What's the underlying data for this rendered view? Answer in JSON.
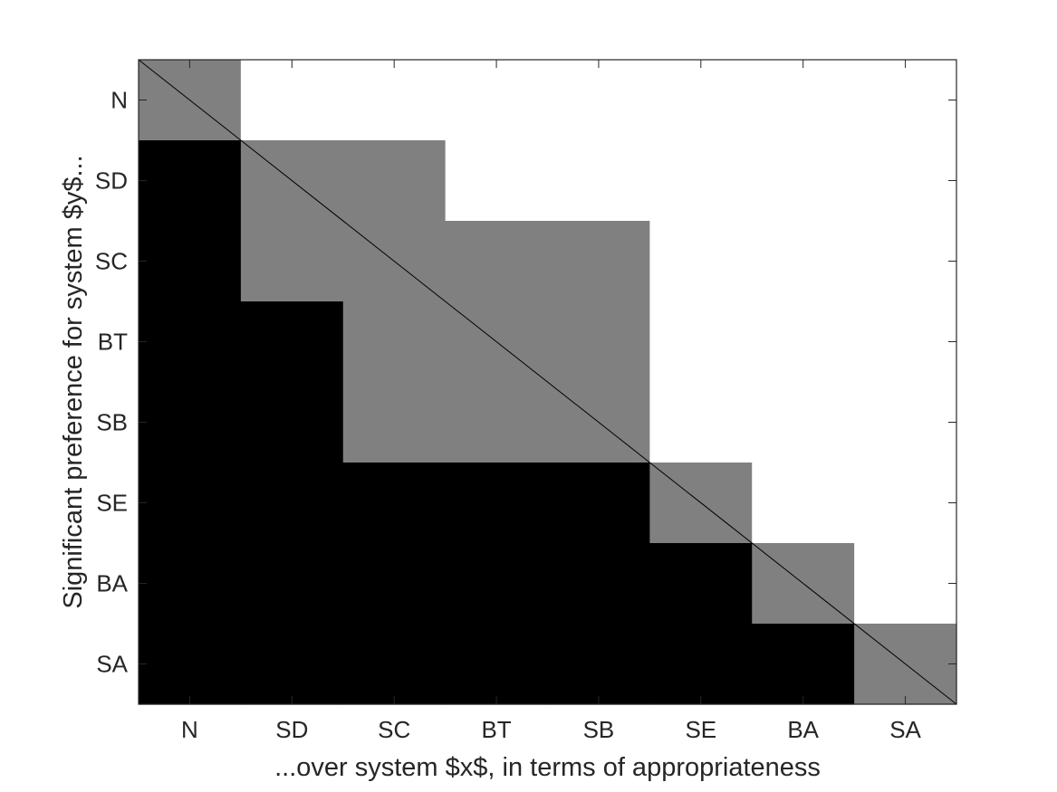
{
  "chart_data": {
    "type": "heatmap",
    "title": "",
    "xlabel": "...over system $x$, in terms of appropriateness",
    "ylabel": "Significant preference for system $y$...",
    "categories": [
      "N",
      "SD",
      "SC",
      "BT",
      "SB",
      "SE",
      "BA",
      "SA"
    ],
    "y_categories": [
      "N",
      "SD",
      "SC",
      "BT",
      "SB",
      "SE",
      "BA",
      "SA"
    ],
    "value_legend": {
      "0": "white",
      "0.5": "gray",
      "1": "black"
    },
    "matrix": [
      [
        0.5,
        0,
        0,
        0,
        0,
        0,
        0,
        0
      ],
      [
        1,
        0.5,
        0.5,
        0,
        0,
        0,
        0,
        0
      ],
      [
        1,
        0.5,
        0.5,
        0.5,
        0.5,
        0,
        0,
        0
      ],
      [
        1,
        1,
        0.5,
        0.5,
        0.5,
        0,
        0,
        0
      ],
      [
        1,
        1,
        0.5,
        0.5,
        0.5,
        0,
        0,
        0
      ],
      [
        1,
        1,
        1,
        1,
        1,
        0.5,
        0,
        0
      ],
      [
        1,
        1,
        1,
        1,
        1,
        1,
        0.5,
        0
      ],
      [
        1,
        1,
        1,
        1,
        1,
        1,
        1,
        0.5
      ]
    ],
    "colors": {
      "0": "#ffffff",
      "0.5": "#808080",
      "1": "#000000"
    },
    "diagonal_line": true,
    "grid": false,
    "legend": "none"
  }
}
